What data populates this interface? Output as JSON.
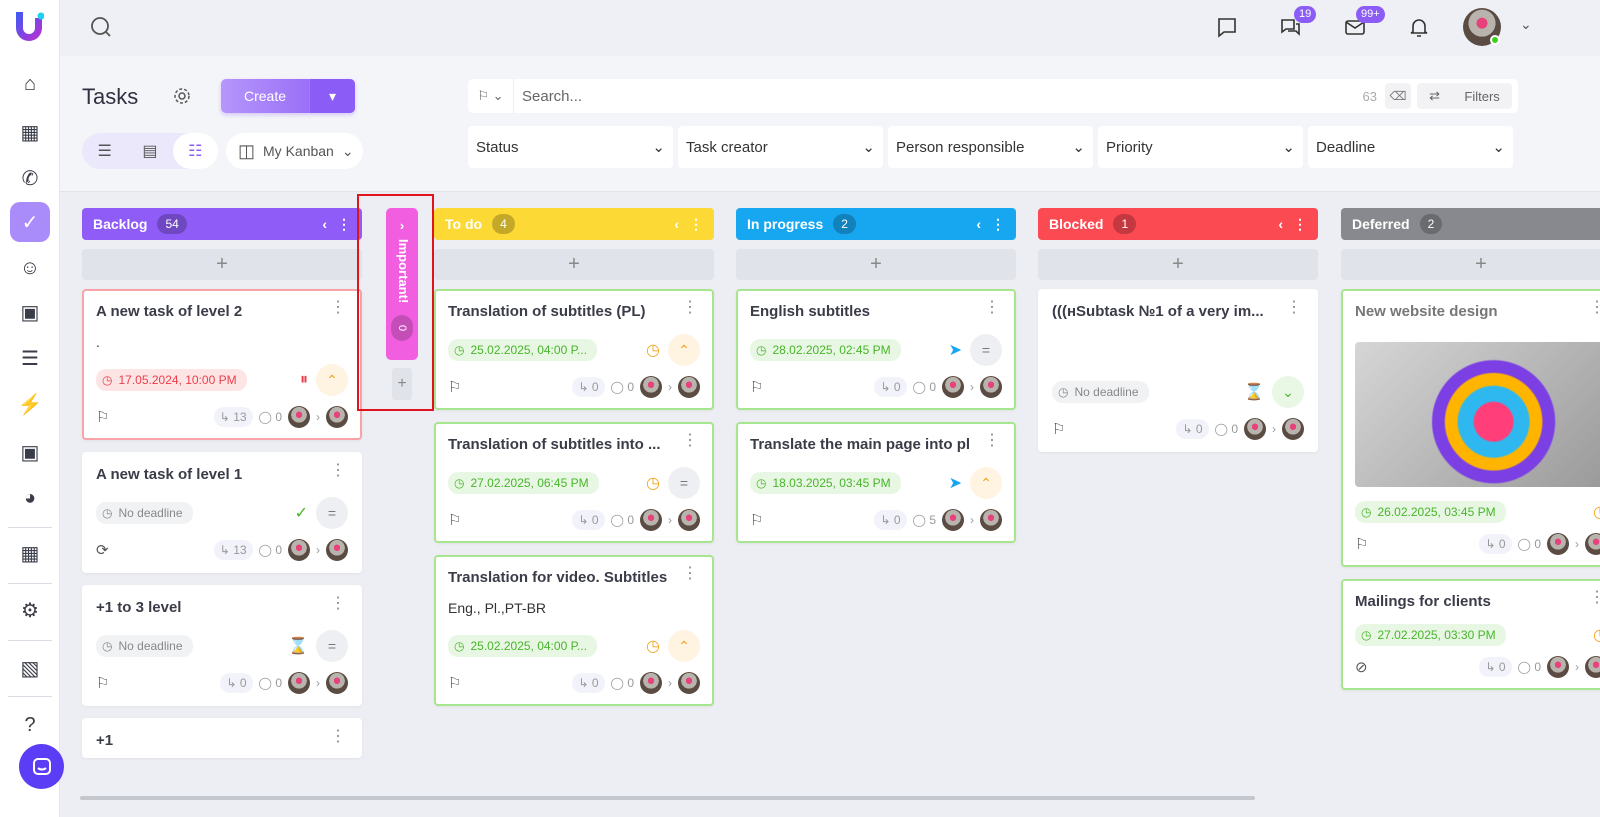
{
  "sidebar": {
    "items": [
      "home-icon",
      "building-icon",
      "phone-chat-icon",
      "tasks-icon",
      "people-icon",
      "calendar-icon",
      "database-icon",
      "lightning-icon",
      "scan-u-icon",
      "chart-icon",
      "store-icon",
      "gear-icon",
      "wallet-icon",
      "help-icon"
    ],
    "active": "tasks-icon"
  },
  "topbar": {
    "chat_badge": "19",
    "mail_badge": "99+"
  },
  "toolbar": {
    "title": "Tasks",
    "create_label": "Create",
    "view_selector": "My Kanban",
    "search_placeholder": "Search...",
    "count": "63",
    "filters_label": "Filters",
    "filters": [
      "Status",
      "Task creator",
      "Person responsible",
      "Priority",
      "Deadline"
    ]
  },
  "colors": {
    "accent": "#8b5cf6",
    "backlog": "#8f5cf7",
    "important": "#f15fe0",
    "todo": "#fcd935",
    "inprogress": "#17a7f1",
    "blocked": "#fb4a52",
    "deferred": "#88898e"
  },
  "important": {
    "label": "Important!",
    "count": "0"
  },
  "columns": [
    {
      "name": "Backlog",
      "count": "54",
      "color": "#8f5cf7",
      "cards": [
        {
          "title": "A new task of level 2",
          "desc": ".",
          "deadline": "17.05.2024, 10:00 PM",
          "dl_style": "red",
          "status_icon": "pause-icon",
          "priority": "up",
          "subtasks": "13",
          "comments": "0",
          "foot_icon": "flag-icon",
          "border": "#f9a3a8"
        },
        {
          "title": "A new task of level 1",
          "deadline": "No deadline",
          "dl_style": "gray",
          "status_icon": "check-icon",
          "priority": "eq",
          "subtasks": "13",
          "comments": "0",
          "foot_icon": "repeat-icon"
        },
        {
          "title": "+1 to 3 level",
          "deadline": "No deadline",
          "dl_style": "gray",
          "status_icon": "hourglass-icon",
          "priority": "eq",
          "subtasks": "0",
          "comments": "0",
          "foot_icon": "flag-icon"
        },
        {
          "title": "+1",
          "deadline": "",
          "dl_style": "gray",
          "subtasks": "",
          "comments": ""
        }
      ]
    },
    {
      "name": "To do",
      "count": "4",
      "color": "#fcd935",
      "cards": [
        {
          "title": "Translation of subtitles (PL)",
          "deadline": "25.02.2025, 04:00 P...",
          "dl_style": "green",
          "status_icon": "clock-icon",
          "priority": "up",
          "subtasks": "0",
          "comments": "0",
          "foot_icon": "flag-icon",
          "border": "#a8e58f"
        },
        {
          "title": "Translation of subtitles into ...",
          "deadline": "27.02.2025, 06:45 PM",
          "dl_style": "green",
          "status_icon": "clock-icon",
          "priority": "eq",
          "subtasks": "0",
          "comments": "0",
          "foot_icon": "flag-icon",
          "border": "#a8e58f"
        },
        {
          "title": "Translation for video. Subtitles",
          "desc": "Eng., Pl.,PT-BR",
          "deadline": "25.02.2025, 04:00 P...",
          "dl_style": "green",
          "status_icon": "clock-icon",
          "priority": "up",
          "subtasks": "0",
          "comments": "0",
          "foot_icon": "flag-icon",
          "border": "#a8e58f"
        }
      ]
    },
    {
      "name": "In progress",
      "count": "2",
      "color": "#17a7f1",
      "cards": [
        {
          "title": "English subtitles",
          "deadline": "28.02.2025, 02:45 PM",
          "dl_style": "green",
          "status_icon": "rocket-icon",
          "priority": "eq",
          "subtasks": "0",
          "comments": "0",
          "foot_icon": "flag-icon",
          "border": "#a8e58f"
        },
        {
          "title": "Translate the main page into pl",
          "deadline": "18.03.2025, 03:45 PM",
          "dl_style": "green",
          "status_icon": "rocket-icon",
          "priority": "up",
          "subtasks": "0",
          "comments": "5",
          "foot_icon": "flag-icon",
          "border": "#a8e58f"
        }
      ]
    },
    {
      "name": "Blocked",
      "count": "1",
      "color": "#fb4a52",
      "cards": [
        {
          "title": "(((нSubtask №1 of a very im...",
          "desc": " ",
          "deadline": "No deadline",
          "dl_style": "gray",
          "status_icon": "hourglass-icon",
          "priority": "down",
          "subtasks": "0",
          "comments": "0",
          "foot_icon": "flag-icon"
        }
      ]
    },
    {
      "name": "Deferred",
      "count": "2",
      "color": "#88898e",
      "cards": [
        {
          "title": "New website design",
          "image": true,
          "deadline": "26.02.2025, 03:45 PM",
          "dl_style": "green",
          "status_icon": "clock-icon",
          "subtasks": "0",
          "comments": "0",
          "foot_icon": "flag-icon",
          "border": "#a8e58f",
          "muted": true
        },
        {
          "title": "Mailings for clients",
          "deadline": "27.02.2025, 03:30 PM",
          "dl_style": "green",
          "status_icon": "clock-icon",
          "subtasks": "0",
          "comments": "0",
          "foot_icon": "eye-off-icon",
          "border": "#a8e58f"
        }
      ]
    }
  ]
}
